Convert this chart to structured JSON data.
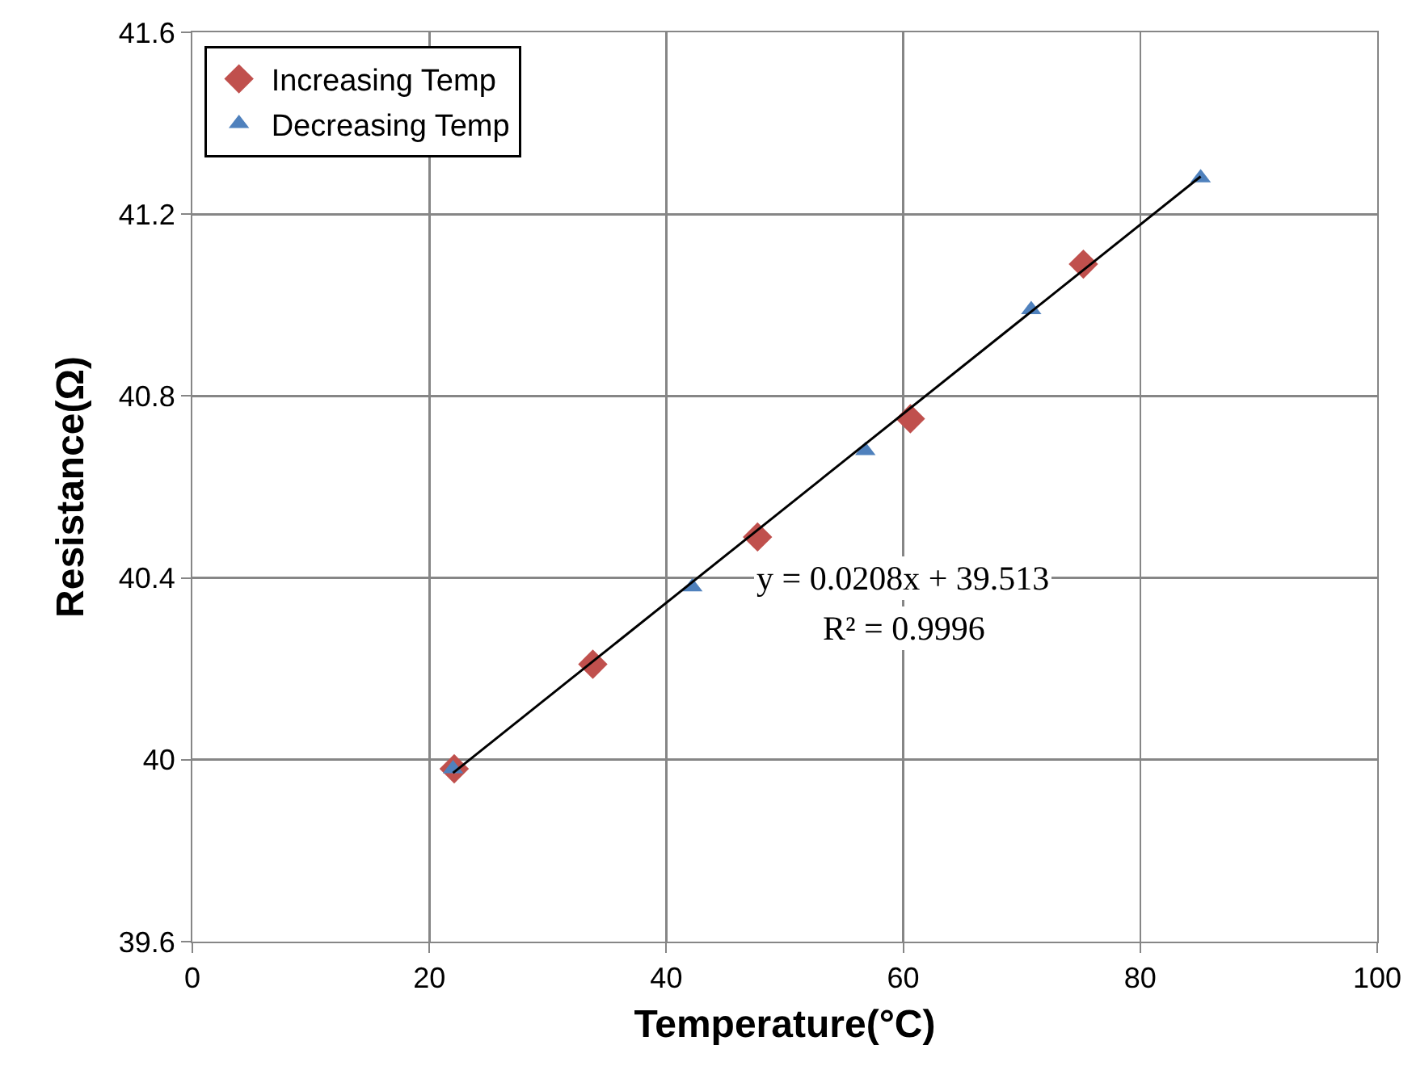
{
  "chart_data": {
    "type": "scatter",
    "xlabel": "Temperature(°C)",
    "ylabel": "Resistance(Ω)",
    "xlim": [
      0,
      100
    ],
    "xticks": [
      0,
      20,
      40,
      60,
      80,
      100
    ],
    "ylim": [
      39.6,
      41.6
    ],
    "yticks": [
      39.6,
      40,
      40.4,
      40.8,
      41.2,
      41.6
    ],
    "grid": true,
    "legend": "top left",
    "series": [
      {
        "name": "Increasing Temp",
        "marker": "diamond",
        "color": "#c0504d",
        "x": [
          22.1,
          33.8,
          47.7,
          60.6,
          75.2
        ],
        "values": [
          39.98,
          40.21,
          40.49,
          40.75,
          41.09
        ]
      },
      {
        "name": "Decreasing Temp",
        "marker": "triangle",
        "color": "#4f81bd",
        "x": [
          22.0,
          42.2,
          56.8,
          70.8,
          85.1
        ],
        "values": [
          39.98,
          40.38,
          40.68,
          40.99,
          41.28
        ]
      },
      {
        "type": "line",
        "marker": "none",
        "line_style": "solid",
        "color": "#000000",
        "x": [
          22.0,
          85.1
        ],
        "values": [
          39.971,
          41.283
        ]
      }
    ],
    "annotations": [
      "y = 0.0208x + 39.513",
      "R² = 0.9996"
    ]
  }
}
